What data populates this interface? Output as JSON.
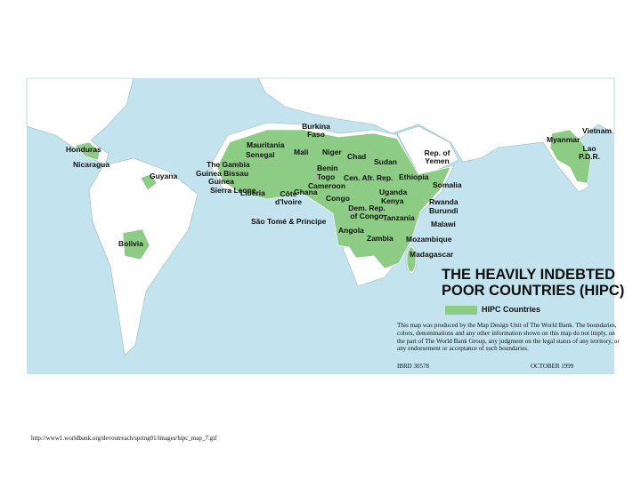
{
  "map": {
    "title": "THE HEAVILY INDEBTED POOR COUNTRIES (HIPC)",
    "legend": "HIPC Countries",
    "labels": [
      "Honduras",
      "Nicaragua",
      "Guyana",
      "Bolivia",
      "Burkina Faso",
      "Mauritania",
      "Senegal",
      "The Gambia",
      "Guinea Bissau",
      "Guinea",
      "Sierra Leone",
      "Liberia",
      "Mali",
      "Niger",
      "Chad",
      "Sudan",
      "Rep. of Yemen",
      "Benin",
      "Togo",
      "Cen. Afr. Rep.",
      "Cameroon",
      "Côte d'Ivoire",
      "Ghana",
      "Ethiopia",
      "Somalia",
      "Uganda",
      "Kenya",
      "Congo",
      "Rwanda",
      "Burundi",
      "Dem. Rep. of Congo",
      "Tanzania",
      "São Tomé & Principe",
      "Angola",
      "Malawi",
      "Zambia",
      "Mozambique",
      "Madagascar",
      "Vietnam",
      "Myanmar",
      "Lao P.D.R."
    ],
    "note": "This map was produced by the Map Design Unit of The World Bank. The boundaries, colors, denominations and any other information shown on this map do not imply, on the part of The World Bank Group, any judgment on the legal status of any territory, or any endorsement or acceptance of such boundaries.",
    "ibrd": "IBRD 30578",
    "date": "OCTOBER 1999"
  },
  "source_url": "http://www1.worldbank.org/devoutreach/spring01/images/hipc_map_7.gif"
}
